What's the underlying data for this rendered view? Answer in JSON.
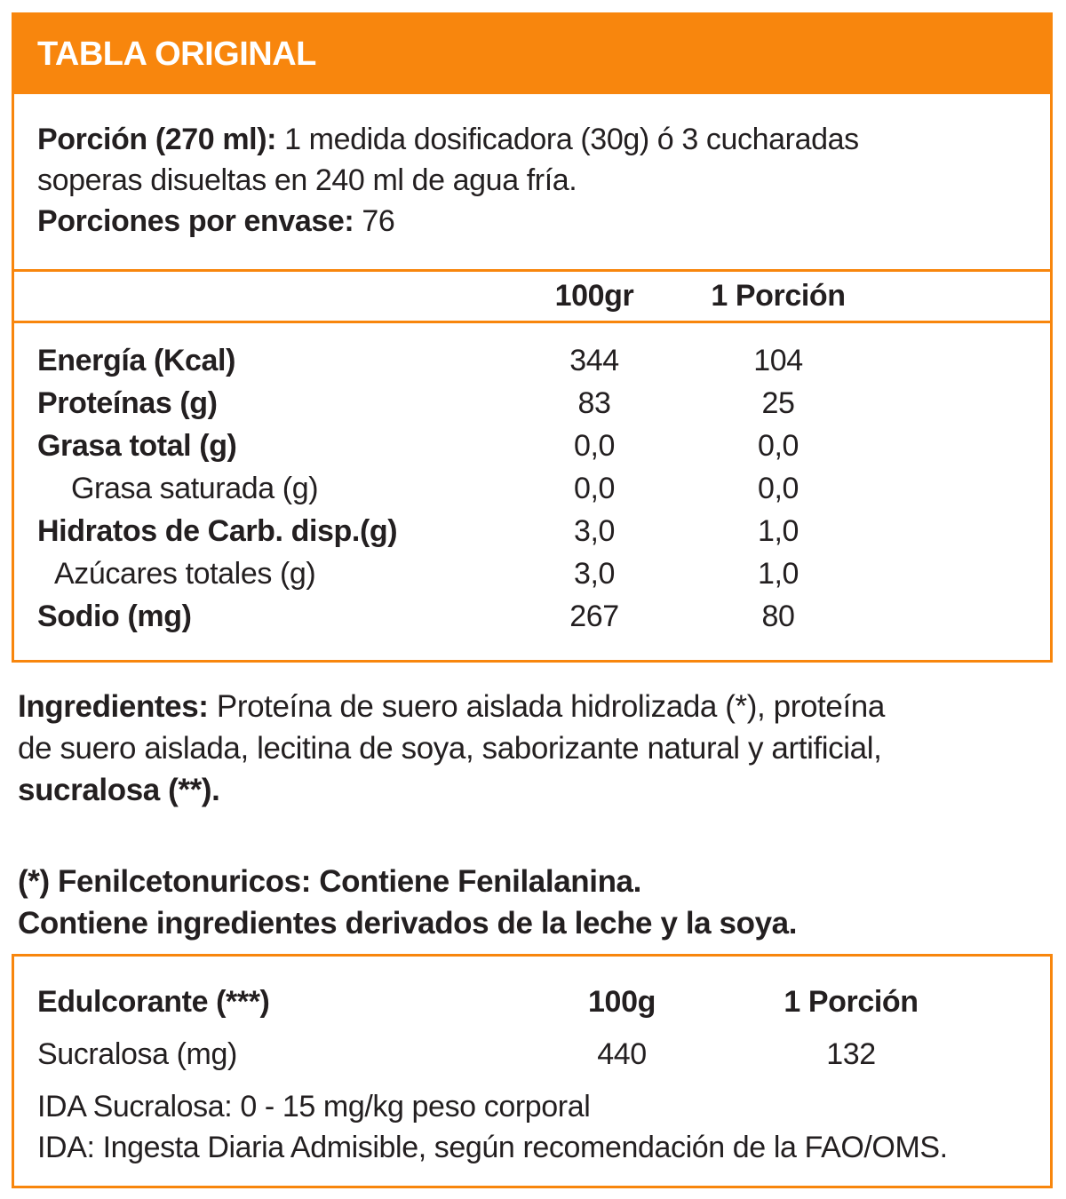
{
  "accent_color": "#F8860D",
  "text_color": "#231F20",
  "header": {
    "title": "TABLA ORIGINAL"
  },
  "serving": {
    "porcion_label": "Porción (270 ml):",
    "porcion_line1_rest": " 1 medida dosificadora (30g) ó 3 cucharadas",
    "porcion_line2": "soperas disueltas en 240 ml de agua fría.",
    "porciones_label": "Porciones por envase:",
    "porciones_value": " 76"
  },
  "nutrition_table": {
    "columns": {
      "per100": "100gr",
      "porcion": "1 Porción"
    },
    "rows": [
      {
        "label": "Energía (Kcal)",
        "per100": "344",
        "porcion": "104"
      },
      {
        "label": "Proteínas (g)",
        "per100": "83",
        "porcion": "25"
      },
      {
        "label": "Grasa total (g)",
        "per100": "0,0",
        "porcion": "0,0"
      },
      {
        "label": "Grasa saturada (g)",
        "per100": "0,0",
        "porcion": "0,0"
      },
      {
        "label": "Hidratos de Carb. disp.(g)",
        "per100": "3,0",
        "porcion": "1,0"
      },
      {
        "label": "Azúcares totales (g)",
        "per100": "3,0",
        "porcion": "1,0"
      },
      {
        "label": "Sodio (mg)",
        "per100": "267",
        "porcion": "80"
      }
    ]
  },
  "ingredients": {
    "label": "Ingredientes:",
    "line1_rest": " Proteína de suero aislada hidrolizada (*), proteína",
    "line2": "de suero aislada, lecitina de soya, saborizante natural y artificial,",
    "line3_bold": "sucralosa (**)."
  },
  "warnings": {
    "line1": "(*) Fenilcetonuricos: Contiene Fenilalanina.",
    "line2": "Contiene ingredientes derivados de la leche y la soya."
  },
  "sweetener_table": {
    "title": "Edulcorante (***)",
    "columns": {
      "per100": "100g",
      "porcion": "1 Porción"
    },
    "rows": [
      {
        "label": "Sucralosa (mg)",
        "per100": "440",
        "porcion": "132"
      }
    ],
    "note1": "IDA Sucralosa: 0 - 15 mg/kg peso corporal",
    "note2": "IDA: Ingesta Diaria Admisible, según recomendación de la FAO/OMS."
  }
}
